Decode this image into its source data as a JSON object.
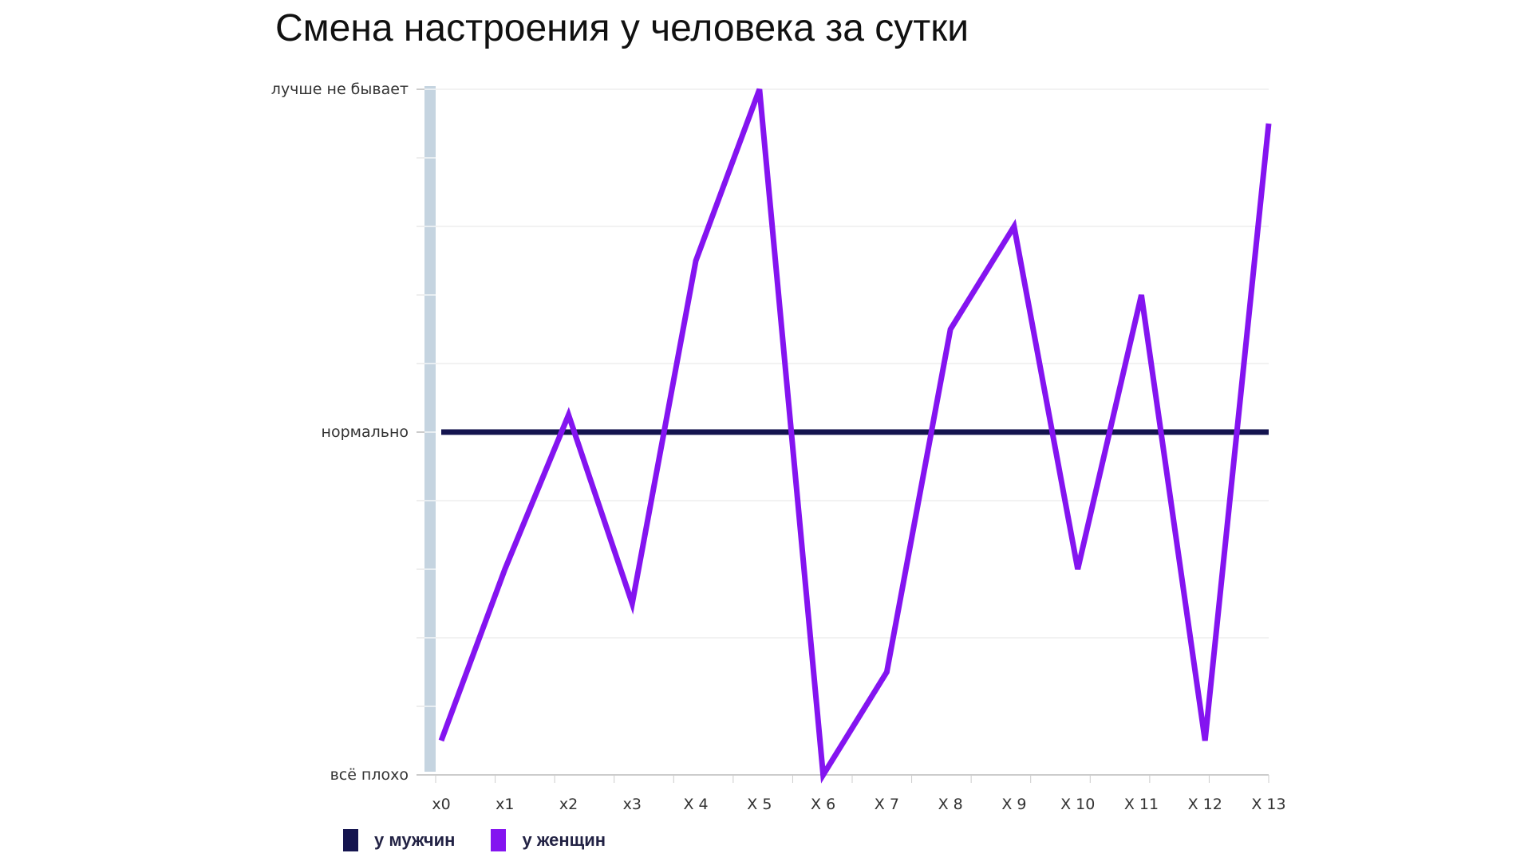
{
  "chart_data": {
    "type": "line",
    "title": "Смена настроения у человека за сутки",
    "xlabel": "",
    "ylabel": "",
    "categories": [
      "x0",
      "x1",
      "x2",
      "x3",
      "X 4",
      "X 5",
      "X 6",
      "X 7",
      "X 8",
      "X 9",
      "X 10",
      "X 11",
      "X 12",
      "X 13"
    ],
    "ylim": [
      -5,
      5
    ],
    "y_ticks": [
      {
        "value": 5,
        "label": "лучше не бывает"
      },
      {
        "value": 0,
        "label": "нормально"
      },
      {
        "value": -5,
        "label": "всё плохо"
      }
    ],
    "grid": true,
    "legend_position": "bottom-left",
    "series": [
      {
        "name": "у мужчин",
        "color": "#14144f",
        "values": [
          0,
          0,
          0,
          0,
          0,
          0,
          0,
          0,
          0,
          0,
          0,
          0,
          0,
          0
        ]
      },
      {
        "name": "у женщин",
        "color": "#8414f0",
        "values": [
          -4.5,
          -2,
          0.25,
          -2.5,
          2.5,
          5,
          -5,
          -3.5,
          1.5,
          3,
          -2,
          2,
          -4.5,
          4.5
        ]
      }
    ]
  }
}
